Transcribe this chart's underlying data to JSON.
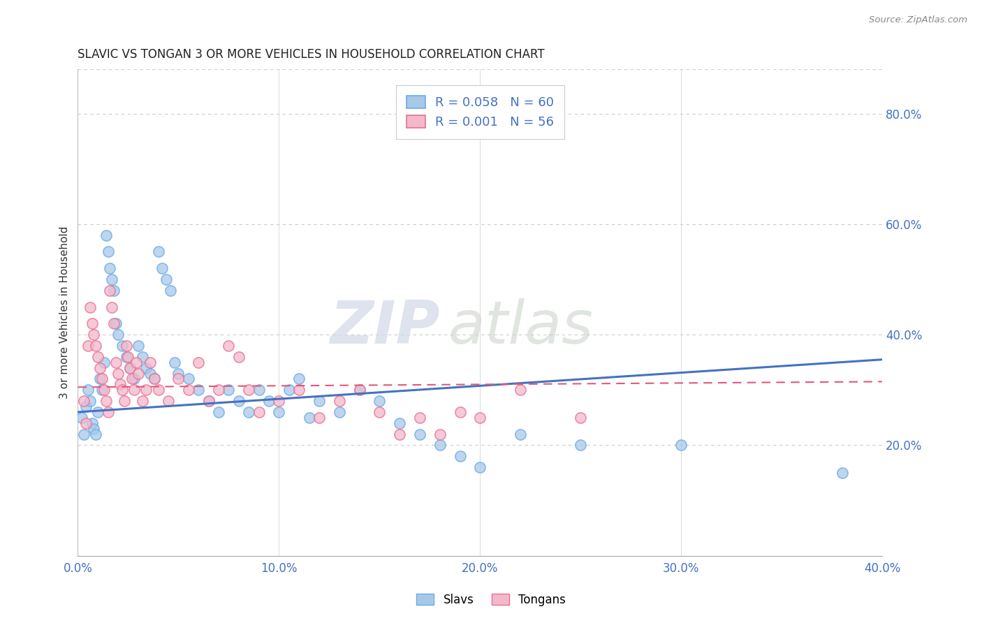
{
  "title": "SLAVIC VS TONGAN 3 OR MORE VEHICLES IN HOUSEHOLD CORRELATION CHART",
  "source": "Source: ZipAtlas.com",
  "ylabel_left": "3 or more Vehicles in Household",
  "xlim": [
    0.0,
    0.4
  ],
  "ylim": [
    0.0,
    0.88
  ],
  "slavs_color": "#a8c8e8",
  "slavs_edge_color": "#6aabe8",
  "tongans_color": "#f4b8cc",
  "tongans_edge_color": "#e87090",
  "slavs_line_color": "#4472c4",
  "tongans_line_color": "#e05878",
  "slavs_R": 0.058,
  "slavs_N": 60,
  "tongans_R": 0.001,
  "tongans_N": 56,
  "slavs_line_start": 0.26,
  "slavs_line_end": 0.355,
  "tongans_line_start": 0.305,
  "tongans_line_end": 0.315,
  "slavs_scatter": [
    [
      0.002,
      0.25
    ],
    [
      0.003,
      0.22
    ],
    [
      0.004,
      0.27
    ],
    [
      0.005,
      0.3
    ],
    [
      0.006,
      0.28
    ],
    [
      0.007,
      0.24
    ],
    [
      0.008,
      0.23
    ],
    [
      0.009,
      0.22
    ],
    [
      0.01,
      0.26
    ],
    [
      0.011,
      0.32
    ],
    [
      0.012,
      0.3
    ],
    [
      0.013,
      0.35
    ],
    [
      0.014,
      0.58
    ],
    [
      0.015,
      0.55
    ],
    [
      0.016,
      0.52
    ],
    [
      0.017,
      0.5
    ],
    [
      0.018,
      0.48
    ],
    [
      0.019,
      0.42
    ],
    [
      0.02,
      0.4
    ],
    [
      0.022,
      0.38
    ],
    [
      0.024,
      0.36
    ],
    [
      0.026,
      0.34
    ],
    [
      0.028,
      0.32
    ],
    [
      0.03,
      0.38
    ],
    [
      0.032,
      0.36
    ],
    [
      0.034,
      0.34
    ],
    [
      0.036,
      0.33
    ],
    [
      0.038,
      0.32
    ],
    [
      0.04,
      0.55
    ],
    [
      0.042,
      0.52
    ],
    [
      0.044,
      0.5
    ],
    [
      0.046,
      0.48
    ],
    [
      0.048,
      0.35
    ],
    [
      0.05,
      0.33
    ],
    [
      0.055,
      0.32
    ],
    [
      0.06,
      0.3
    ],
    [
      0.065,
      0.28
    ],
    [
      0.07,
      0.26
    ],
    [
      0.075,
      0.3
    ],
    [
      0.08,
      0.28
    ],
    [
      0.085,
      0.26
    ],
    [
      0.09,
      0.3
    ],
    [
      0.095,
      0.28
    ],
    [
      0.1,
      0.26
    ],
    [
      0.105,
      0.3
    ],
    [
      0.11,
      0.32
    ],
    [
      0.115,
      0.25
    ],
    [
      0.12,
      0.28
    ],
    [
      0.13,
      0.26
    ],
    [
      0.14,
      0.3
    ],
    [
      0.15,
      0.28
    ],
    [
      0.16,
      0.24
    ],
    [
      0.17,
      0.22
    ],
    [
      0.18,
      0.2
    ],
    [
      0.19,
      0.18
    ],
    [
      0.2,
      0.16
    ],
    [
      0.22,
      0.22
    ],
    [
      0.25,
      0.2
    ],
    [
      0.3,
      0.2
    ],
    [
      0.38,
      0.15
    ]
  ],
  "tongans_scatter": [
    [
      0.003,
      0.28
    ],
    [
      0.004,
      0.24
    ],
    [
      0.005,
      0.38
    ],
    [
      0.006,
      0.45
    ],
    [
      0.007,
      0.42
    ],
    [
      0.008,
      0.4
    ],
    [
      0.009,
      0.38
    ],
    [
      0.01,
      0.36
    ],
    [
      0.011,
      0.34
    ],
    [
      0.012,
      0.32
    ],
    [
      0.013,
      0.3
    ],
    [
      0.014,
      0.28
    ],
    [
      0.015,
      0.26
    ],
    [
      0.016,
      0.48
    ],
    [
      0.017,
      0.45
    ],
    [
      0.018,
      0.42
    ],
    [
      0.019,
      0.35
    ],
    [
      0.02,
      0.33
    ],
    [
      0.021,
      0.31
    ],
    [
      0.022,
      0.3
    ],
    [
      0.023,
      0.28
    ],
    [
      0.024,
      0.38
    ],
    [
      0.025,
      0.36
    ],
    [
      0.026,
      0.34
    ],
    [
      0.027,
      0.32
    ],
    [
      0.028,
      0.3
    ],
    [
      0.029,
      0.35
    ],
    [
      0.03,
      0.33
    ],
    [
      0.032,
      0.28
    ],
    [
      0.034,
      0.3
    ],
    [
      0.036,
      0.35
    ],
    [
      0.038,
      0.32
    ],
    [
      0.04,
      0.3
    ],
    [
      0.045,
      0.28
    ],
    [
      0.05,
      0.32
    ],
    [
      0.055,
      0.3
    ],
    [
      0.06,
      0.35
    ],
    [
      0.065,
      0.28
    ],
    [
      0.07,
      0.3
    ],
    [
      0.075,
      0.38
    ],
    [
      0.08,
      0.36
    ],
    [
      0.085,
      0.3
    ],
    [
      0.09,
      0.26
    ],
    [
      0.1,
      0.28
    ],
    [
      0.11,
      0.3
    ],
    [
      0.12,
      0.25
    ],
    [
      0.13,
      0.28
    ],
    [
      0.14,
      0.3
    ],
    [
      0.15,
      0.26
    ],
    [
      0.16,
      0.22
    ],
    [
      0.17,
      0.25
    ],
    [
      0.18,
      0.22
    ],
    [
      0.19,
      0.26
    ],
    [
      0.2,
      0.25
    ],
    [
      0.22,
      0.3
    ],
    [
      0.25,
      0.25
    ]
  ],
  "background_color": "#ffffff",
  "grid_color": "#cccccc",
  "watermark_zip": "ZIP",
  "watermark_atlas": "atlas",
  "right_y_ticks": [
    0.2,
    0.4,
    0.6,
    0.8
  ],
  "x_ticks": [
    0.0,
    0.1,
    0.2,
    0.3,
    0.4
  ],
  "legend_slavs_label": "Slavs",
  "legend_tongans_label": "Tongans"
}
